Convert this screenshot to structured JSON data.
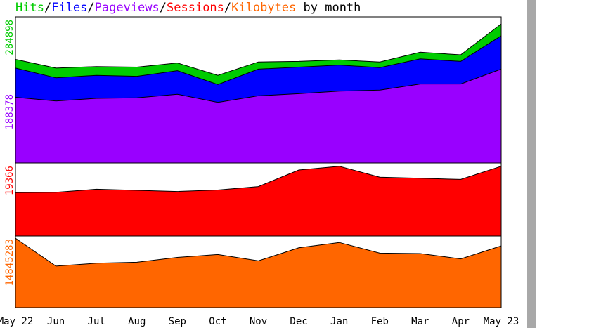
{
  "chart_data": {
    "type": "area",
    "title_parts": [
      {
        "text": "Hits",
        "color": "#00cc00"
      },
      {
        "text": "/",
        "color": "#000000"
      },
      {
        "text": "Files",
        "color": "#0000ff"
      },
      {
        "text": "/",
        "color": "#000000"
      },
      {
        "text": "Pageviews",
        "color": "#9900ff"
      },
      {
        "text": "/",
        "color": "#000000"
      },
      {
        "text": "Sessions",
        "color": "#ff0000"
      },
      {
        "text": "/",
        "color": "#000000"
      },
      {
        "text": "Kilobytes",
        "color": "#ff6600"
      },
      {
        "text": " by month",
        "color": "#000000"
      }
    ],
    "categories": [
      "May 22",
      "Jun",
      "Jul",
      "Aug",
      "Sep",
      "Oct",
      "Nov",
      "Dec",
      "Jan",
      "Feb",
      "Mar",
      "Apr",
      "May 23"
    ],
    "panels": [
      {
        "ylabel": "284898",
        "ylabel_color": "#00cc00",
        "ylabel2": "188378",
        "ylabel2_color": "#9900ff",
        "ymax": 284898,
        "series": [
          {
            "name": "Hits",
            "color": "#00cc00",
            "values": [
              202000,
              185000,
              188000,
              187000,
              195000,
              171000,
              197000,
              198000,
              201000,
              197000,
              216000,
              211000,
              271000
            ]
          },
          {
            "name": "Files",
            "color": "#0000ff",
            "values": [
              185000,
              166000,
              171000,
              169000,
              180000,
              153000,
              183000,
              187000,
              191000,
              186000,
              203000,
              198000,
              248000
            ]
          },
          {
            "name": "Pageviews",
            "color": "#9900ff",
            "values": [
              128000,
              121000,
              126000,
              127000,
              134000,
              118000,
              131000,
              135000,
              140000,
              142000,
              154000,
              154000,
              183000
            ]
          }
        ]
      },
      {
        "ylabel": "19366",
        "ylabel_color": "#ff0000",
        "ymax": 19366,
        "series": [
          {
            "name": "Sessions",
            "color": "#ff0000",
            "values": [
              11500,
              11600,
              12400,
              12100,
              11800,
              12200,
              13100,
              17500,
              18500,
              15600,
              15300,
              15000,
              18500
            ]
          }
        ]
      },
      {
        "ylabel": "14845283",
        "ylabel_color": "#ff6600",
        "ymax": 14845283,
        "series": [
          {
            "name": "Kilobytes",
            "color": "#ff6600",
            "values": [
              14400000,
              8600000,
              9200000,
              9400000,
              10400000,
              11000000,
              9700000,
              12400000,
              13500000,
              11300000,
              11200000,
              10100000,
              12800000
            ]
          }
        ]
      }
    ]
  }
}
